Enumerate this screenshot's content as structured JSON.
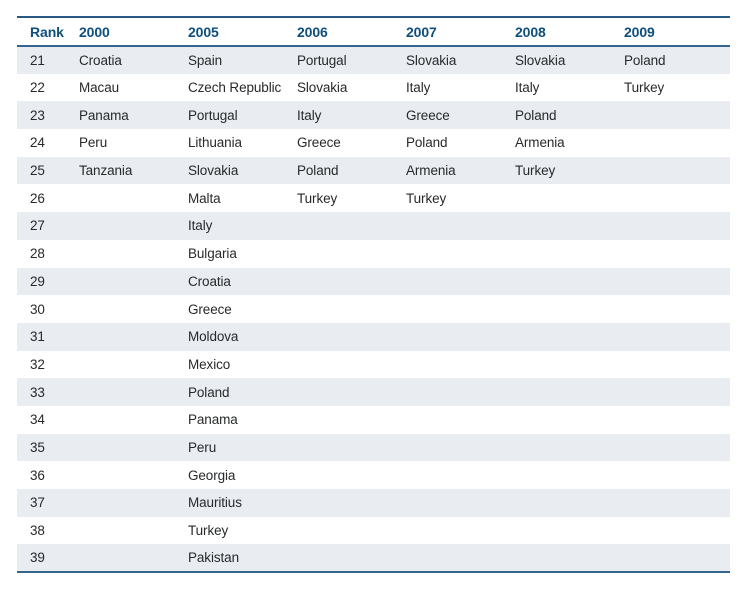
{
  "table": {
    "columns": [
      "Rank",
      "2000",
      "2005",
      "2006",
      "2007",
      "2008",
      "2009"
    ],
    "rows": [
      {
        "rank": "21",
        "cells": [
          "Croatia",
          "Spain",
          "Portugal",
          "Slovakia",
          "Slovakia",
          "Poland"
        ]
      },
      {
        "rank": "22",
        "cells": [
          "Macau",
          "Czech Republic",
          "Slovakia",
          "Italy",
          "Italy",
          "Turkey"
        ]
      },
      {
        "rank": "23",
        "cells": [
          "Panama",
          "Portugal",
          "Italy",
          "Greece",
          "Poland",
          ""
        ]
      },
      {
        "rank": "24",
        "cells": [
          "Peru",
          "Lithuania",
          "Greece",
          "Poland",
          "Armenia",
          ""
        ]
      },
      {
        "rank": "25",
        "cells": [
          "Tanzania",
          "Slovakia",
          "Poland",
          "Armenia",
          "Turkey",
          ""
        ]
      },
      {
        "rank": "26",
        "cells": [
          "",
          "Malta",
          "Turkey",
          "Turkey",
          "",
          ""
        ]
      },
      {
        "rank": "27",
        "cells": [
          "",
          "Italy",
          "",
          "",
          "",
          ""
        ]
      },
      {
        "rank": "28",
        "cells": [
          "",
          "Bulgaria",
          "",
          "",
          "",
          ""
        ]
      },
      {
        "rank": "29",
        "cells": [
          "",
          "Croatia",
          "",
          "",
          "",
          ""
        ]
      },
      {
        "rank": "30",
        "cells": [
          "",
          "Greece",
          "",
          "",
          "",
          ""
        ]
      },
      {
        "rank": "31",
        "cells": [
          "",
          "Moldova",
          "",
          "",
          "",
          ""
        ]
      },
      {
        "rank": "32",
        "cells": [
          "",
          "Mexico",
          "",
          "",
          "",
          ""
        ]
      },
      {
        "rank": "33",
        "cells": [
          "",
          "Poland",
          "",
          "",
          "",
          ""
        ]
      },
      {
        "rank": "34",
        "cells": [
          "",
          "Panama",
          "",
          "",
          "",
          ""
        ]
      },
      {
        "rank": "35",
        "cells": [
          "",
          "Peru",
          "",
          "",
          "",
          ""
        ]
      },
      {
        "rank": "36",
        "cells": [
          "",
          "Georgia",
          "",
          "",
          "",
          ""
        ]
      },
      {
        "rank": "37",
        "cells": [
          "",
          "Mauritius",
          "",
          "",
          "",
          ""
        ]
      },
      {
        "rank": "38",
        "cells": [
          "",
          "Turkey",
          "",
          "",
          "",
          ""
        ]
      },
      {
        "rank": "39",
        "cells": [
          "",
          "Pakistan",
          "",
          "",
          "",
          ""
        ]
      }
    ]
  },
  "chart_data": {
    "type": "table",
    "title": "",
    "columns": [
      "Rank",
      "2000",
      "2005",
      "2006",
      "2007",
      "2008",
      "2009"
    ],
    "rows": [
      [
        "21",
        "Croatia",
        "Spain",
        "Portugal",
        "Slovakia",
        "Slovakia",
        "Poland"
      ],
      [
        "22",
        "Macau",
        "Czech Republic",
        "Slovakia",
        "Italy",
        "Italy",
        "Turkey"
      ],
      [
        "23",
        "Panama",
        "Portugal",
        "Italy",
        "Greece",
        "Poland",
        ""
      ],
      [
        "24",
        "Peru",
        "Lithuania",
        "Greece",
        "Poland",
        "Armenia",
        ""
      ],
      [
        "25",
        "Tanzania",
        "Slovakia",
        "Poland",
        "Armenia",
        "Turkey",
        ""
      ],
      [
        "26",
        "",
        "Malta",
        "Turkey",
        "Turkey",
        "",
        ""
      ],
      [
        "27",
        "",
        "Italy",
        "",
        "",
        "",
        ""
      ],
      [
        "28",
        "",
        "Bulgaria",
        "",
        "",
        "",
        ""
      ],
      [
        "29",
        "",
        "Croatia",
        "",
        "",
        "",
        ""
      ],
      [
        "30",
        "",
        "Greece",
        "",
        "",
        "",
        ""
      ],
      [
        "31",
        "",
        "Moldova",
        "",
        "",
        "",
        ""
      ],
      [
        "32",
        "",
        "Mexico",
        "",
        "",
        "",
        ""
      ],
      [
        "33",
        "",
        "Poland",
        "",
        "",
        "",
        ""
      ],
      [
        "34",
        "",
        "Panama",
        "",
        "",
        "",
        ""
      ],
      [
        "35",
        "",
        "Peru",
        "",
        "",
        "",
        ""
      ],
      [
        "36",
        "",
        "Georgia",
        "",
        "",
        "",
        ""
      ],
      [
        "37",
        "",
        "Mauritius",
        "",
        "",
        "",
        ""
      ],
      [
        "38",
        "",
        "Turkey",
        "",
        "",
        "",
        ""
      ],
      [
        "39",
        "",
        "Pakistan",
        "",
        "",
        "",
        ""
      ]
    ]
  },
  "colors": {
    "header_text": "#0e4f7c",
    "body_text": "#27292b",
    "row_stripe": "#e9edf1",
    "border_top": "#265a84",
    "border_header": "#35658f",
    "border_bottom": "#35658f"
  }
}
